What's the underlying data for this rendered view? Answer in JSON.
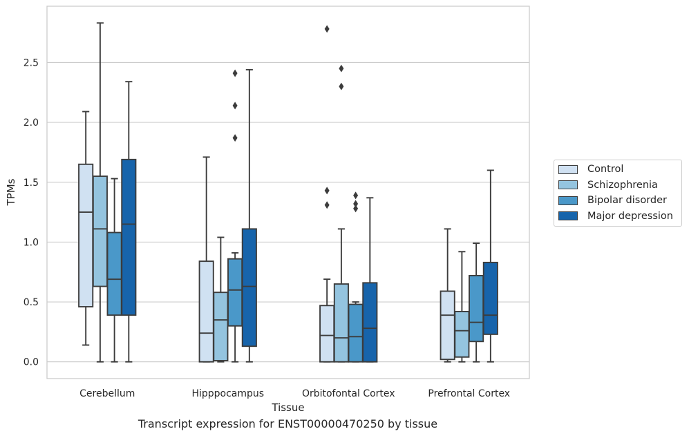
{
  "chart_data": {
    "type": "box",
    "xlabel": "Tissue",
    "ylabel": "TPMs",
    "caption": "Transcript expression for ENST00000470250 by tissue",
    "ylim": [
      -0.14,
      2.97
    ],
    "yticks": [
      0.0,
      0.5,
      1.0,
      1.5,
      2.0,
      2.5
    ],
    "ytick_labels": [
      "0.0",
      "0.5",
      "1.0",
      "1.5",
      "2.0",
      "2.5"
    ],
    "grid": "horizontal",
    "legend_position": "right",
    "categories": [
      "Cerebellum",
      "Hipppocampus",
      "Orbitofontal Cortex",
      "Prefrontal Cortex"
    ],
    "series": [
      {
        "name": "Control",
        "color": "#d0e1f2",
        "boxes": [
          {
            "whislo": 0.14,
            "q1": 0.46,
            "med": 1.25,
            "q3": 1.65,
            "whishi": 2.09,
            "fliers": []
          },
          {
            "whislo": 0.0,
            "q1": 0.0,
            "med": 0.24,
            "q3": 0.84,
            "whishi": 1.71,
            "fliers": []
          },
          {
            "whislo": 0.0,
            "q1": 0.0,
            "med": 0.22,
            "q3": 0.47,
            "whishi": 0.69,
            "fliers": [
              1.31,
              1.43,
              2.78
            ]
          },
          {
            "whislo": 0.0,
            "q1": 0.02,
            "med": 0.39,
            "q3": 0.59,
            "whishi": 1.11,
            "fliers": []
          }
        ]
      },
      {
        "name": "Schizophrenia",
        "color": "#94c4df",
        "boxes": [
          {
            "whislo": 0.0,
            "q1": 0.63,
            "med": 1.11,
            "q3": 1.55,
            "whishi": 2.83,
            "fliers": []
          },
          {
            "whislo": 0.0,
            "q1": 0.01,
            "med": 0.35,
            "q3": 0.58,
            "whishi": 1.04,
            "fliers": []
          },
          {
            "whislo": 0.0,
            "q1": 0.0,
            "med": 0.2,
            "q3": 0.65,
            "whishi": 1.11,
            "fliers": [
              2.3,
              2.45
            ]
          },
          {
            "whislo": 0.0,
            "q1": 0.04,
            "med": 0.26,
            "q3": 0.42,
            "whishi": 0.92,
            "fliers": []
          }
        ]
      },
      {
        "name": "Bipolar disorder",
        "color": "#4a98c9",
        "boxes": [
          {
            "whislo": 0.0,
            "q1": 0.39,
            "med": 0.69,
            "q3": 1.08,
            "whishi": 1.53,
            "fliers": []
          },
          {
            "whislo": 0.0,
            "q1": 0.3,
            "med": 0.6,
            "q3": 0.86,
            "whishi": 0.91,
            "fliers": [
              1.87,
              2.14,
              2.41
            ]
          },
          {
            "whislo": 0.0,
            "q1": 0.0,
            "med": 0.21,
            "q3": 0.48,
            "whishi": 0.5,
            "fliers": [
              1.28,
              1.32,
              1.39
            ]
          },
          {
            "whislo": 0.0,
            "q1": 0.17,
            "med": 0.33,
            "q3": 0.72,
            "whishi": 0.99,
            "fliers": []
          }
        ]
      },
      {
        "name": "Major depression",
        "color": "#1764ab",
        "boxes": [
          {
            "whislo": 0.0,
            "q1": 0.39,
            "med": 1.15,
            "q3": 1.69,
            "whishi": 2.34,
            "fliers": []
          },
          {
            "whislo": 0.0,
            "q1": 0.13,
            "med": 0.63,
            "q3": 1.11,
            "whishi": 2.44,
            "fliers": []
          },
          {
            "whislo": 0.0,
            "q1": 0.0,
            "med": 0.28,
            "q3": 0.66,
            "whishi": 1.37,
            "fliers": []
          },
          {
            "whislo": 0.0,
            "q1": 0.23,
            "med": 0.39,
            "q3": 0.83,
            "whishi": 1.6,
            "fliers": []
          }
        ]
      }
    ]
  }
}
